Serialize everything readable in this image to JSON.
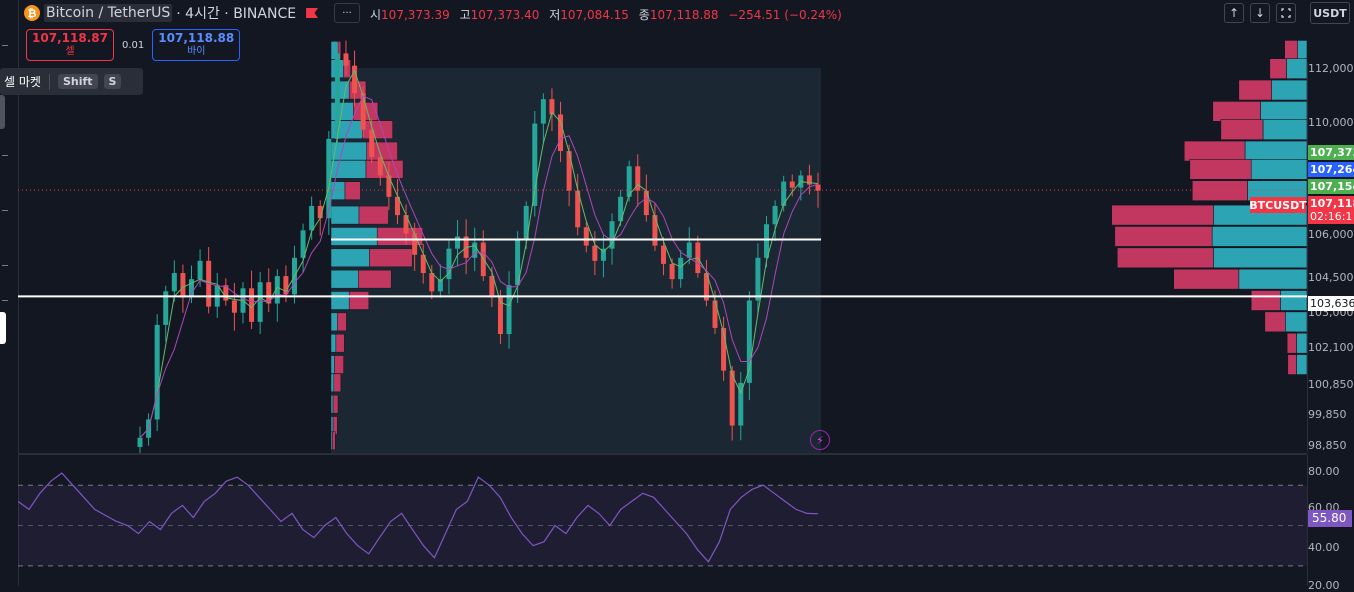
{
  "header": {
    "symbol_title": "Bitcoin / TetherUS",
    "symbol_meta": "· 4시간 · BINANCE",
    "logo_glyph": "₿",
    "more_icon": "···",
    "ohlc": [
      {
        "key": "시",
        "value": "107,373.39"
      },
      {
        "key": "고",
        "value": "107,373.40"
      },
      {
        "key": "저",
        "value": "107,084.15"
      },
      {
        "key": "종",
        "value": "107,118.88"
      }
    ],
    "change": "−254.51 (−0.24%)"
  },
  "trade": {
    "sell_price": "107,118.87",
    "sell_label": "셀",
    "spread": "0.01",
    "buy_price": "107,118.88",
    "buy_label": "바이"
  },
  "tooltip": {
    "text": "셀 마켓",
    "key1": "Shift",
    "key2": "S"
  },
  "toolbar": {
    "up_icon": "↑",
    "down_icon": "↓",
    "currency": "USDT"
  },
  "price_scale": {
    "labels": [
      "112,000",
      "110,000",
      "106,000",
      "104,500",
      "103,000",
      "102,100",
      "100,850",
      "99,850",
      "98,850"
    ],
    "tags": [
      {
        "text": "107,373",
        "color": "#4caf50"
      },
      {
        "text": "107,264",
        "color": "#2962ff"
      },
      {
        "text": "107,154",
        "color": "#4caf50"
      },
      {
        "text": "107,118",
        "color": "#f23645"
      },
      {
        "text": "02:16:1",
        "color": "#f23645"
      },
      {
        "text": "103,636",
        "color": "#ffffff"
      }
    ],
    "symbol_tag": "BTCUSDT"
  },
  "rsi": {
    "labels": [
      "80.00",
      "60.00",
      "40.00",
      "20.00"
    ],
    "value": "55.80"
  },
  "colors": {
    "background": "#131722",
    "bull": "#26a69a",
    "bear": "#ef5350",
    "profile_up": "#2ca4b4",
    "profile_down": "#c2375f",
    "rsi_line": "#7e57c2"
  },
  "chart_data": {
    "type": "candlestick",
    "timeframe": "4h",
    "ylim": [
      98500,
      112500
    ],
    "close_approx": [
      99000,
      99600,
      102700,
      103800,
      104400,
      103600,
      104200,
      104800,
      103300,
      104000,
      103500,
      103100,
      103900,
      102800,
      104100,
      103400,
      104300,
      103700,
      104900,
      105800,
      106600,
      106200,
      108800,
      111600,
      111200,
      110300,
      109100,
      108200,
      107600,
      106900,
      106300,
      105700,
      105000,
      104400,
      103800,
      104200,
      105200,
      105600,
      104900,
      105400,
      104300,
      103600,
      102400,
      104000,
      105500,
      106600,
      109300,
      110100,
      109600,
      108400,
      107100,
      105900,
      105300,
      104800,
      105200,
      106100,
      106900,
      107900,
      107100,
      106300,
      105300,
      104700,
      104200,
      104900,
      105400,
      104400,
      103500,
      102600,
      101200,
      99400,
      100800,
      103500,
      104900,
      106000,
      106600,
      107400,
      107200,
      107600,
      107300,
      107100
    ],
    "volume_profile_right": [
      {
        "price": 111700,
        "up": 1.5,
        "down": 2.1
      },
      {
        "price": 111100,
        "up": 3.3,
        "down": 2.7
      },
      {
        "price": 110400,
        "up": 5.7,
        "down": 5.3
      },
      {
        "price": 109700,
        "up": 7.5,
        "down": 7.7
      },
      {
        "price": 109100,
        "up": 7.1,
        "down": 6.8
      },
      {
        "price": 108400,
        "up": 10.0,
        "down": 9.8
      },
      {
        "price": 107800,
        "up": 9.0,
        "down": 9.9
      },
      {
        "price": 107100,
        "up": 9.6,
        "down": 8.9
      },
      {
        "price": 106300,
        "up": 15.1,
        "down": 16.4
      },
      {
        "price": 105600,
        "up": 15.3,
        "down": 15.7
      },
      {
        "price": 104900,
        "up": 15.1,
        "down": 15.5
      },
      {
        "price": 104200,
        "up": 11.0,
        "down": 10.5
      },
      {
        "price": 103500,
        "up": 4.3,
        "down": 4.7
      },
      {
        "price": 102800,
        "up": 3.5,
        "down": 3.3
      },
      {
        "price": 102100,
        "up": 1.7,
        "down": 1.5
      },
      {
        "price": 101400,
        "up": 1.7,
        "down": 1.4
      }
    ],
    "volume_profile_session": [
      {
        "price": 111700,
        "up": 1.0,
        "down": 0.4
      },
      {
        "price": 111100,
        "up": 1.8,
        "down": 1.0
      },
      {
        "price": 110400,
        "up": 2.6,
        "down": 2.4
      },
      {
        "price": 109700,
        "up": 3.2,
        "down": 3.5
      },
      {
        "price": 109100,
        "up": 4.5,
        "down": 4.3
      },
      {
        "price": 108400,
        "up": 5.1,
        "down": 4.4
      },
      {
        "price": 107800,
        "up": 5.0,
        "down": 5.3
      },
      {
        "price": 107100,
        "up": 2.0,
        "down": 2.2
      },
      {
        "price": 106300,
        "up": 4.0,
        "down": 4.2
      },
      {
        "price": 105600,
        "up": 6.6,
        "down": 6.5
      },
      {
        "price": 104900,
        "up": 5.5,
        "down": 6.1
      },
      {
        "price": 104200,
        "up": 3.9,
        "down": 4.7
      },
      {
        "price": 103500,
        "up": 2.6,
        "down": 2.8
      },
      {
        "price": 102800,
        "up": 0.9,
        "down": 1.3
      },
      {
        "price": 102100,
        "up": 0.7,
        "down": 1.2
      },
      {
        "price": 101400,
        "up": 0.5,
        "down": 1.3
      },
      {
        "price": 100800,
        "up": 0.4,
        "down": 1.0
      },
      {
        "price": 100100,
        "up": 0.3,
        "down": 0.7
      },
      {
        "price": 99400,
        "up": 0.3,
        "down": 0.6
      },
      {
        "price": 98900,
        "up": 0.2,
        "down": 0.4
      }
    ],
    "horizontal_levels": [
      105500,
      103636
    ],
    "current_price": 107118.88,
    "rsi": {
      "overbought": 70,
      "oversold": 30,
      "ylim": [
        20,
        85
      ],
      "values_approx": [
        62,
        58,
        66,
        72,
        76,
        70,
        64,
        58,
        55,
        52,
        50,
        46,
        52,
        48,
        56,
        60,
        54,
        62,
        66,
        72,
        74,
        70,
        64,
        58,
        52,
        56,
        48,
        44,
        50,
        54,
        46,
        40,
        36,
        44,
        52,
        56,
        48,
        40,
        34,
        46,
        58,
        62,
        74,
        70,
        64,
        54,
        46,
        40,
        42,
        50,
        46,
        54,
        60,
        56,
        50,
        58,
        62,
        66,
        64,
        58,
        52,
        46,
        38,
        32,
        42,
        58,
        64,
        68,
        70,
        66,
        62,
        58,
        56,
        55.8
      ]
    }
  }
}
